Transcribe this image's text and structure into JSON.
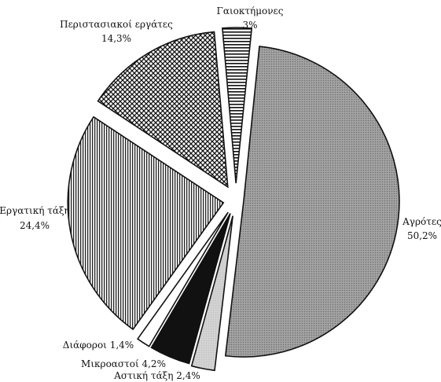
{
  "chart_data": {
    "type": "pie",
    "exploded": true,
    "slices": [
      {
        "name": "Γαιοκτήμονες",
        "value": 3,
        "value_label": "3%",
        "pattern": "horizontal-stripes"
      },
      {
        "name": "Αγρότες",
        "value": 50.2,
        "value_label": "50,2%",
        "pattern": "gray-dots"
      },
      {
        "name": "Αστική τάξη",
        "value": 2.4,
        "value_label": "Αστική τάξη 2,4%",
        "pattern": "light-gray"
      },
      {
        "name": "Μικροαστοί",
        "value": 4.2,
        "value_label": "Μικροαστοί 4,2%",
        "pattern": "black"
      },
      {
        "name": "Διάφοροι",
        "value": 1.4,
        "value_label": "Διάφοροι 1,4%",
        "pattern": "white"
      },
      {
        "name": "Εργατική τάξη",
        "value": 24.4,
        "value_label": "24,4%",
        "pattern": "vertical-stripes"
      },
      {
        "name": "Περιστασιακοί εργάτες",
        "value": 14.3,
        "value_label": "14,3%",
        "pattern": "crosshatch"
      }
    ]
  }
}
